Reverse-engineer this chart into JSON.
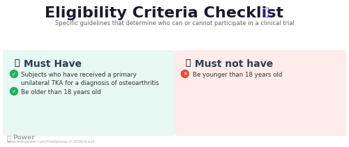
{
  "title": "Eligibility Criteria Checklist",
  "subtitle": "Specific guidelines that determine who can or cannot participate in a clinical trial",
  "left_panel": {
    "header": "Must Have",
    "bg_color": "#e8f8f2",
    "header_icon": "👍",
    "icon_color": "#d4a017",
    "items": [
      {
        "text": "Subjects who have received a primary\nunilateral TKA for a diagnosis of osteoarthritis",
        "icon_color": "#27ae60"
      },
      {
        "text": "Be older than 18 years old",
        "icon_color": "#27ae60"
      }
    ]
  },
  "right_panel": {
    "header": "Must not have",
    "bg_color": "#fdecea",
    "header_icon": "👎",
    "icon_color": "#e8a000",
    "items": [
      {
        "text": "Be younger than 18 years old",
        "icon_color": "#e74c3c"
      }
    ]
  },
  "footer_url": "www.withpower.com/trial/phase-3-2016-tca16",
  "bg_color": "#ffffff",
  "title_color": "#1a1a2e",
  "subtitle_color": "#666666",
  "footer_color": "#aaaaaa",
  "checklist_icon_color": "#6c3dcc"
}
